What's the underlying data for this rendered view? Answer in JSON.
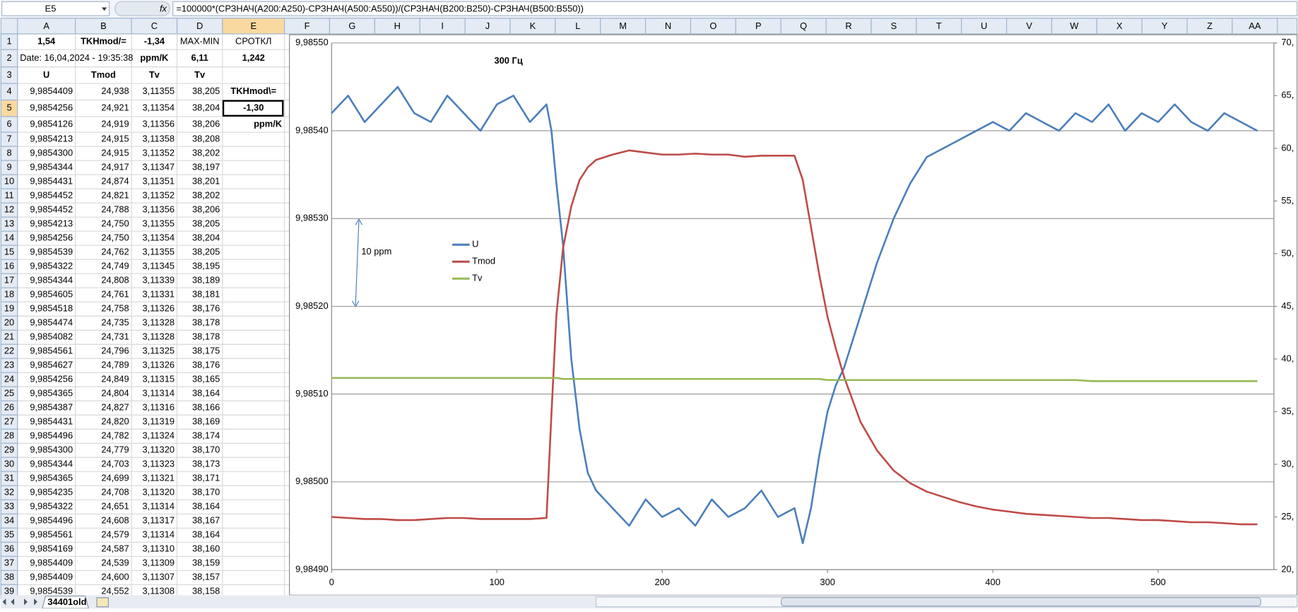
{
  "name_box": "E5",
  "formula": "=100000*(СРЗНАЧ(A200:A250)-СРЗНАЧ(A500:A550))/(СРЗНАЧ(B200:B250)-СРЗНАЧ(B500:B550))",
  "column_headers": [
    "A",
    "B",
    "C",
    "D",
    "E",
    "F",
    "G",
    "H",
    "I",
    "J",
    "K",
    "L",
    "M",
    "N",
    "O",
    "P",
    "Q",
    "R",
    "S",
    "T",
    "U",
    "V",
    "W",
    "X",
    "Y",
    "Z",
    "AA"
  ],
  "row_headers": [
    1,
    2,
    3,
    4,
    5,
    6,
    7,
    8,
    9,
    10,
    11,
    12,
    13,
    14,
    15,
    16,
    17,
    18,
    19,
    20,
    21,
    22,
    23,
    24,
    25,
    26,
    27,
    28,
    29,
    30,
    31,
    32,
    33,
    34,
    35,
    36,
    37,
    38,
    39
  ],
  "rows": [
    [
      "1,54",
      "TKHmod/=",
      "-1,34",
      "MAX-MIN",
      "СРОТКЛ"
    ],
    [
      "Date: 16,04,2024 - 19:35:38",
      null,
      "ppm/K",
      "6,11",
      "1,242"
    ],
    [
      "U",
      "Tmod",
      "Tv",
      "Tv",
      null
    ],
    [
      "9,9854409",
      "24,938",
      "3,11355",
      "38,205",
      "TKHmod\\="
    ],
    [
      "9,9854256",
      "24,921",
      "3,11354",
      "38,204",
      "-1,30"
    ],
    [
      "9,9854126",
      "24,919",
      "3,11356",
      "38,206",
      "ppm/K"
    ],
    [
      "9,9854213",
      "24,915",
      "3,11358",
      "38,208",
      null
    ],
    [
      "9,9854300",
      "24,915",
      "3,11352",
      "38,202",
      null
    ],
    [
      "9,9854344",
      "24,917",
      "3,11347",
      "38,197",
      null
    ],
    [
      "9,9854431",
      "24,874",
      "3,11351",
      "38,201",
      null
    ],
    [
      "9,9854452",
      "24,821",
      "3,11352",
      "38,202",
      null
    ],
    [
      "9,9854452",
      "24,788",
      "3,11356",
      "38,206",
      null
    ],
    [
      "9,9854213",
      "24,750",
      "3,11355",
      "38,205",
      null
    ],
    [
      "9,9854256",
      "24,750",
      "3,11354",
      "38,204",
      null
    ],
    [
      "9,9854539",
      "24,762",
      "3,11355",
      "38,205",
      null
    ],
    [
      "9,9854322",
      "24,749",
      "3,11345",
      "38,195",
      null
    ],
    [
      "9,9854344",
      "24,808",
      "3,11339",
      "38,189",
      null
    ],
    [
      "9,9854605",
      "24,761",
      "3,11331",
      "38,181",
      null
    ],
    [
      "9,9854518",
      "24,758",
      "3,11326",
      "38,176",
      null
    ],
    [
      "9,9854474",
      "24,735",
      "3,11328",
      "38,178",
      null
    ],
    [
      "9,9854082",
      "24,731",
      "3,11328",
      "38,178",
      null
    ],
    [
      "9,9854561",
      "24,796",
      "3,11325",
      "38,175",
      null
    ],
    [
      "9,9854627",
      "24,789",
      "3,11326",
      "38,176",
      null
    ],
    [
      "9,9854256",
      "24,849",
      "3,11315",
      "38,165",
      null
    ],
    [
      "9,9854365",
      "24,804",
      "3,11314",
      "38,164",
      null
    ],
    [
      "9,9854387",
      "24,827",
      "3,11316",
      "38,166",
      null
    ],
    [
      "9,9854431",
      "24,820",
      "3,11319",
      "38,169",
      null
    ],
    [
      "9,9854496",
      "24,782",
      "3,11324",
      "38,174",
      null
    ],
    [
      "9,9854300",
      "24,779",
      "3,11320",
      "38,170",
      null
    ],
    [
      "9,9854344",
      "24,703",
      "3,11323",
      "38,173",
      null
    ],
    [
      "9,9854365",
      "24,699",
      "3,11321",
      "38,171",
      null
    ],
    [
      "9,9854235",
      "24,708",
      "3,11320",
      "38,170",
      null
    ],
    [
      "9,9854322",
      "24,651",
      "3,11314",
      "38,164",
      null
    ],
    [
      "9,9854496",
      "24,608",
      "3,11317",
      "38,167",
      null
    ],
    [
      "9,9854561",
      "24,579",
      "3,11314",
      "38,164",
      null
    ],
    [
      "9,9854169",
      "24,587",
      "3,11310",
      "38,160",
      null
    ],
    [
      "9,9854409",
      "24,539",
      "3,11309",
      "38,159",
      null
    ],
    [
      "9,9854409",
      "24,600",
      "3,11307",
      "38,157",
      null
    ],
    [
      "9,9854539",
      "24,552",
      "3,11308",
      "38,158",
      null
    ]
  ],
  "sheet_tab": "34401old",
  "chart_data": {
    "type": "line",
    "title": "300 Гц",
    "annotation": "10 ppm",
    "grid": true,
    "xlim": [
      0,
      570
    ],
    "xticks": [
      0,
      100,
      200,
      300,
      400,
      500
    ],
    "ylim": [
      9.9849,
      9.9855
    ],
    "yticks": [
      {
        "value": 9.9849,
        "label": "9,98490"
      },
      {
        "value": 9.985,
        "label": "9,98500"
      },
      {
        "value": 9.9851,
        "label": "9,98510"
      },
      {
        "value": 9.9852,
        "label": "9,98520"
      },
      {
        "value": 9.9853,
        "label": "9,98530"
      },
      {
        "value": 9.9854,
        "label": "9,98540"
      },
      {
        "value": 9.9855,
        "label": "9,98550"
      }
    ],
    "y2lim": [
      20,
      70
    ],
    "y2ticks": [
      {
        "value": 20,
        "label": "20,"
      },
      {
        "value": 25,
        "label": "25,"
      },
      {
        "value": 30,
        "label": "30,"
      },
      {
        "value": 35,
        "label": "35,"
      },
      {
        "value": 40,
        "label": "40,"
      },
      {
        "value": 45,
        "label": "45,"
      },
      {
        "value": 50,
        "label": "50,"
      },
      {
        "value": 55,
        "label": "55,"
      },
      {
        "value": 60,
        "label": "60,"
      },
      {
        "value": 65,
        "label": "65,"
      },
      {
        "value": 70,
        "label": "70,"
      }
    ],
    "x": [
      0,
      10,
      20,
      30,
      40,
      50,
      60,
      70,
      80,
      90,
      100,
      110,
      120,
      130,
      133,
      136,
      140,
      145,
      150,
      155,
      160,
      170,
      180,
      190,
      200,
      210,
      220,
      230,
      240,
      250,
      260,
      270,
      280,
      285,
      290,
      295,
      300,
      305,
      310,
      320,
      330,
      340,
      350,
      360,
      370,
      380,
      390,
      400,
      410,
      420,
      430,
      440,
      450,
      460,
      470,
      480,
      490,
      500,
      510,
      520,
      530,
      540,
      550,
      560
    ],
    "series": [
      {
        "name": "U",
        "color": "#4a7ebb",
        "values": [
          9.98542,
          9.98544,
          9.98541,
          9.98543,
          9.98545,
          9.98542,
          9.98541,
          9.98544,
          9.98542,
          9.9854,
          9.98543,
          9.98544,
          9.98541,
          9.98543,
          9.9854,
          9.98534,
          9.98527,
          9.98514,
          9.98506,
          9.98501,
          9.98499,
          9.98497,
          9.98495,
          9.98498,
          9.98496,
          9.98497,
          9.98495,
          9.98498,
          9.98496,
          9.98497,
          9.98499,
          9.98496,
          9.98497,
          9.98493,
          9.98497,
          9.98503,
          9.98508,
          9.98511,
          9.98513,
          9.98519,
          9.98525,
          9.9853,
          9.98534,
          9.98537,
          9.98538,
          9.98539,
          9.9854,
          9.98541,
          9.9854,
          9.98542,
          9.98541,
          9.9854,
          9.98542,
          9.98541,
          9.98543,
          9.9854,
          9.98542,
          9.98541,
          9.98543,
          9.98541,
          9.9854,
          9.98542,
          9.98541,
          9.9854
        ]
      },
      {
        "name": "Tmod",
        "color": "#be4b48",
        "axis": "y2",
        "values": [
          25.0,
          24.9,
          24.8,
          24.8,
          24.7,
          24.7,
          24.8,
          24.9,
          24.9,
          24.8,
          24.8,
          24.8,
          24.8,
          24.9,
          34.8,
          44.2,
          50.5,
          54.5,
          57.0,
          58.2,
          58.9,
          59.4,
          59.8,
          59.6,
          59.4,
          59.4,
          59.5,
          59.4,
          59.4,
          59.2,
          59.3,
          59.3,
          59.3,
          57.0,
          52.5,
          48.0,
          44.0,
          41.0,
          38.3,
          34.0,
          31.3,
          29.4,
          28.2,
          27.4,
          26.9,
          26.4,
          26.0,
          25.7,
          25.5,
          25.3,
          25.2,
          25.1,
          25.0,
          24.9,
          24.9,
          24.8,
          24.7,
          24.7,
          24.6,
          24.5,
          24.5,
          24.4,
          24.3,
          24.3
        ]
      },
      {
        "name": "Tv",
        "color": "#98b954",
        "axis": "y2",
        "values": [
          38.2,
          38.2,
          38.2,
          38.2,
          38.2,
          38.2,
          38.2,
          38.2,
          38.2,
          38.2,
          38.2,
          38.2,
          38.2,
          38.2,
          38.2,
          38.2,
          38.1,
          38.1,
          38.1,
          38.1,
          38.1,
          38.1,
          38.1,
          38.1,
          38.1,
          38.1,
          38.1,
          38.1,
          38.1,
          38.1,
          38.1,
          38.1,
          38.1,
          38.1,
          38.1,
          38.1,
          38.0,
          38.0,
          38.0,
          38.0,
          38.0,
          38.0,
          38.0,
          38.0,
          38.0,
          38.0,
          38.0,
          38.0,
          38.0,
          38.0,
          38.0,
          38.0,
          38.0,
          37.9,
          37.9,
          37.9,
          37.9,
          37.9,
          37.9,
          37.9,
          37.9,
          37.9,
          37.9,
          37.9
        ]
      }
    ]
  }
}
